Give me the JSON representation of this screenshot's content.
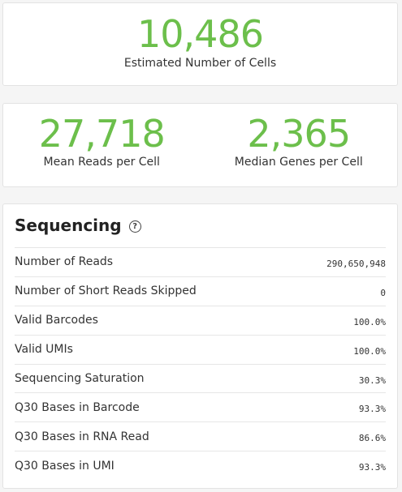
{
  "colors": {
    "accent_green": "#6cbf4b",
    "card_bg": "#ffffff",
    "page_bg": "#f5f5f5"
  },
  "cells": {
    "value": "10,486",
    "label": "Estimated Number of Cells"
  },
  "reads": {
    "mean_reads": {
      "value": "27,718",
      "label": "Mean Reads per Cell"
    },
    "median_genes": {
      "value": "2,365",
      "label": "Median Genes per Cell"
    }
  },
  "sequencing": {
    "title": "Sequencing",
    "help_icon": "question-circle-icon",
    "help_glyph": "?",
    "rows": [
      {
        "label": "Number of Reads",
        "value": "290,650,948"
      },
      {
        "label": "Number of Short Reads Skipped",
        "value": "0"
      },
      {
        "label": "Valid Barcodes",
        "value": "100.0%"
      },
      {
        "label": "Valid UMIs",
        "value": "100.0%"
      },
      {
        "label": "Sequencing Saturation",
        "value": "30.3%"
      },
      {
        "label": "Q30 Bases in Barcode",
        "value": "93.3%"
      },
      {
        "label": "Q30 Bases in RNA Read",
        "value": "86.6%"
      },
      {
        "label": "Q30 Bases in UMI",
        "value": "93.3%"
      }
    ]
  }
}
